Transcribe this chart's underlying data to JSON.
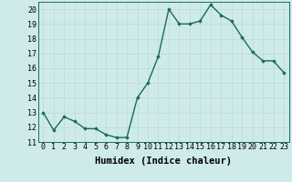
{
  "x": [
    0,
    1,
    2,
    3,
    4,
    5,
    6,
    7,
    8,
    9,
    10,
    11,
    12,
    13,
    14,
    15,
    16,
    17,
    18,
    19,
    20,
    21,
    22,
    23
  ],
  "y": [
    13.0,
    11.8,
    12.7,
    12.4,
    11.9,
    11.9,
    11.5,
    11.3,
    11.3,
    14.0,
    15.0,
    16.8,
    20.0,
    19.0,
    19.0,
    19.2,
    20.3,
    19.6,
    19.2,
    18.1,
    17.1,
    16.5,
    16.5,
    15.7
  ],
  "xlabel": "Humidex (Indice chaleur)",
  "xlim": [
    -0.5,
    23.5
  ],
  "ylim": [
    11,
    20.5
  ],
  "yticks": [
    11,
    12,
    13,
    14,
    15,
    16,
    17,
    18,
    19,
    20
  ],
  "xticks": [
    0,
    1,
    2,
    3,
    4,
    5,
    6,
    7,
    8,
    9,
    10,
    11,
    12,
    13,
    14,
    15,
    16,
    17,
    18,
    19,
    20,
    21,
    22,
    23
  ],
  "line_color": "#1a6b5a",
  "bg_color": "#ceeaea",
  "grid_color": "#c0d8d8",
  "marker": "D",
  "marker_size": 1.8,
  "line_width": 1.0,
  "xlabel_fontsize": 7.5,
  "tick_fontsize": 6.0
}
